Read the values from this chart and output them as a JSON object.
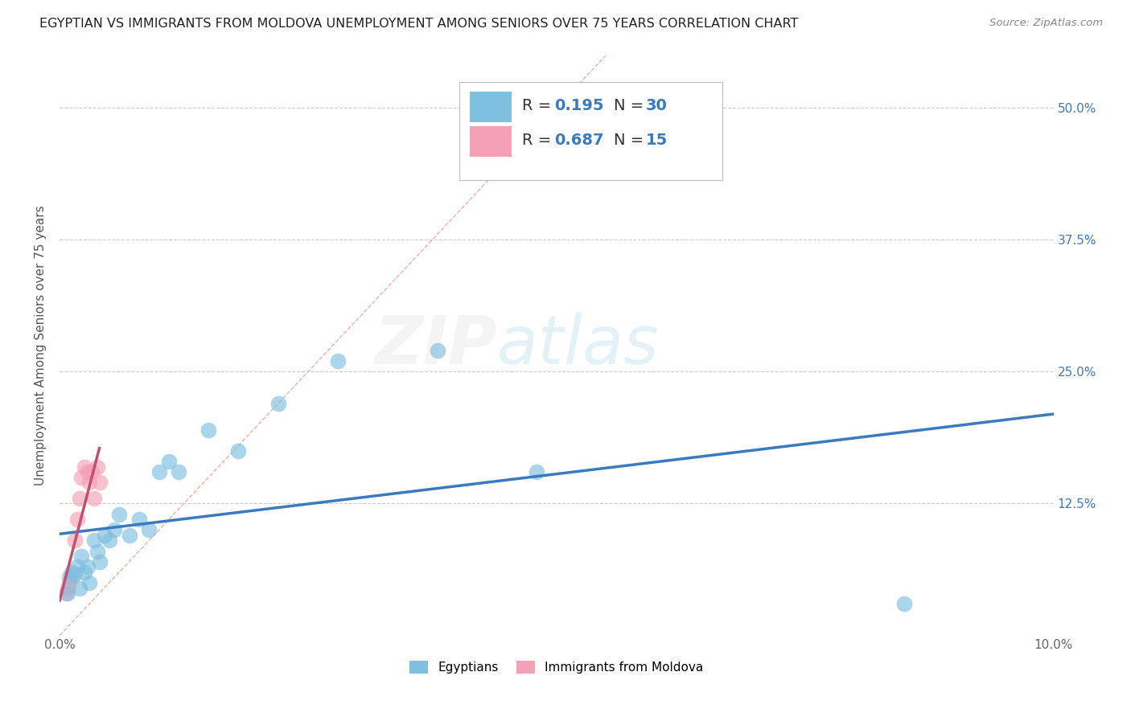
{
  "title": "EGYPTIAN VS IMMIGRANTS FROM MOLDOVA UNEMPLOYMENT AMONG SENIORS OVER 75 YEARS CORRELATION CHART",
  "source": "Source: ZipAtlas.com",
  "ylabel": "Unemployment Among Seniors over 75 years",
  "xlim": [
    0.0,
    0.1
  ],
  "ylim": [
    0.0,
    0.55
  ],
  "xticks": [
    0.0,
    0.02,
    0.04,
    0.06,
    0.08,
    0.1
  ],
  "xticklabels": [
    "0.0%",
    "",
    "",
    "",
    "",
    "10.0%"
  ],
  "yticks": [
    0.0,
    0.125,
    0.25,
    0.375,
    0.5
  ],
  "yticklabels": [
    "",
    "12.5%",
    "25.0%",
    "37.5%",
    "50.0%"
  ],
  "background_color": "#ffffff",
  "grid_color": "#cccccc",
  "watermark_zip": "ZIP",
  "watermark_atlas": "atlas",
  "color_egyptian": "#7fbfdf",
  "color_moldova": "#f4a0b5",
  "color_line_egyptian": "#3a7abf",
  "color_line_moldova": "#c45070",
  "color_diag": "#e8b0b0",
  "egyptians_x": [
    0.0008,
    0.001,
    0.0012,
    0.0015,
    0.0018,
    0.002,
    0.0022,
    0.0025,
    0.0028,
    0.003,
    0.0035,
    0.0038,
    0.004,
    0.0045,
    0.005,
    0.0055,
    0.006,
    0.007,
    0.008,
    0.009,
    0.01,
    0.011,
    0.012,
    0.015,
    0.018,
    0.022,
    0.028,
    0.038,
    0.048,
    0.085
  ],
  "egyptians_y": [
    0.04,
    0.055,
    0.06,
    0.058,
    0.065,
    0.045,
    0.075,
    0.06,
    0.065,
    0.05,
    0.09,
    0.08,
    0.07,
    0.095,
    0.09,
    0.1,
    0.115,
    0.095,
    0.11,
    0.1,
    0.155,
    0.165,
    0.155,
    0.195,
    0.175,
    0.22,
    0.26,
    0.27,
    0.155,
    0.03
  ],
  "moldova_x": [
    0.0006,
    0.0008,
    0.001,
    0.0012,
    0.0015,
    0.0018,
    0.002,
    0.0022,
    0.0025,
    0.0028,
    0.003,
    0.0032,
    0.0035,
    0.0038,
    0.004
  ],
  "moldova_y": [
    0.04,
    0.045,
    0.05,
    0.055,
    0.09,
    0.11,
    0.13,
    0.15,
    0.16,
    0.155,
    0.145,
    0.155,
    0.13,
    0.16,
    0.145
  ],
  "marker_size": 200,
  "title_fontsize": 11.5,
  "label_fontsize": 11,
  "tick_fontsize": 11,
  "legend_fontsize": 14,
  "watermark_fontsize_zip": 60,
  "watermark_fontsize_atlas": 60,
  "watermark_alpha": 0.13
}
